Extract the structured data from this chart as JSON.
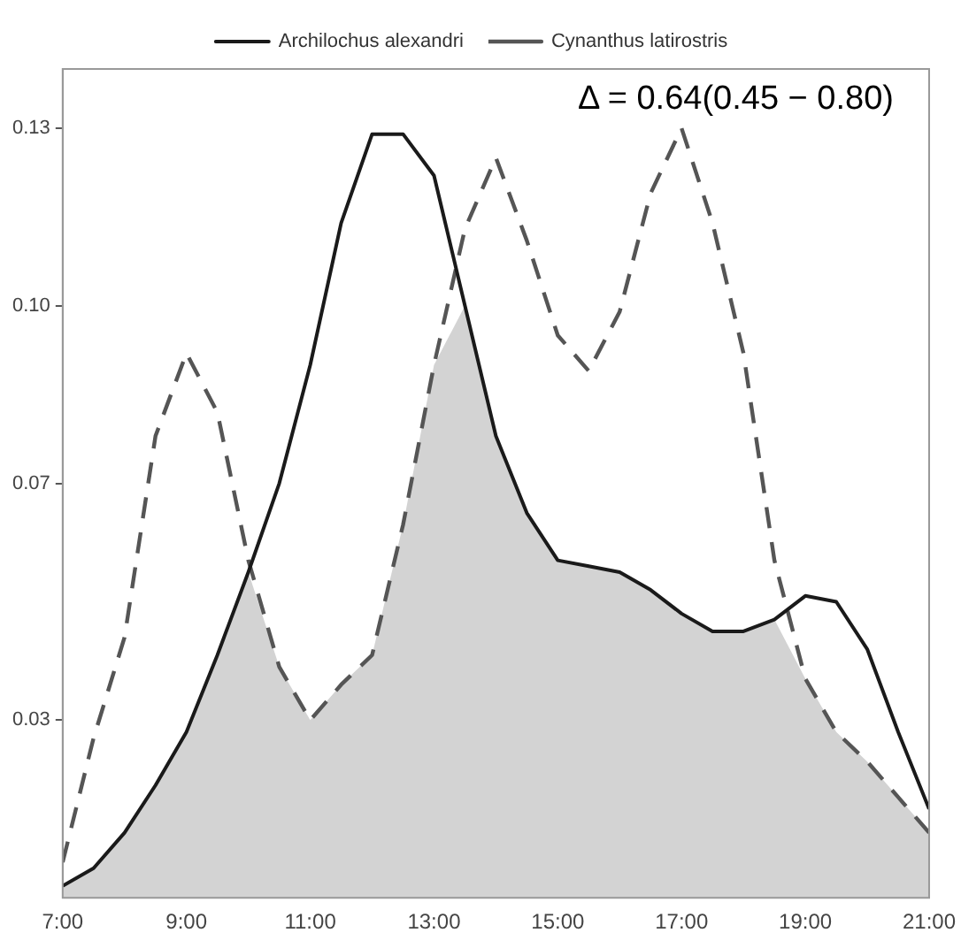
{
  "chart_data": {
    "type": "line",
    "legend": "top",
    "grid": false,
    "marker": "none",
    "annotations": [
      "Δ = 0.64(0.45 − 0.80)"
    ],
    "x": [
      7,
      7.5,
      8,
      8.5,
      9,
      9.5,
      10,
      10.5,
      11,
      11.5,
      12,
      12.5,
      13,
      13.5,
      14,
      14.5,
      15,
      15.5,
      16,
      16.5,
      17,
      17.5,
      18,
      18.5,
      19,
      19.5,
      20,
      20.5,
      21
    ],
    "xlim": [
      7,
      21
    ],
    "xticks": [
      {
        "value": 7,
        "label": "7:00"
      },
      {
        "value": 9,
        "label": "9:00"
      },
      {
        "value": 11,
        "label": "11:00"
      },
      {
        "value": 13,
        "label": "13:00"
      },
      {
        "value": 15,
        "label": "15:00"
      },
      {
        "value": 17,
        "label": "17:00"
      },
      {
        "value": 19,
        "label": "19:00"
      },
      {
        "value": 21,
        "label": "21:00"
      }
    ],
    "ylim": [
      0,
      0.14
    ],
    "yticks": [
      0.03,
      0.07,
      {
        "value": 0.1,
        "label": "0.10"
      },
      0.13
    ],
    "series": [
      {
        "type": "area",
        "color": "#d3d3d3",
        "values": [
          0.002,
          0.005,
          0.011,
          0.019,
          0.028,
          0.041,
          0.055,
          0.039,
          0.03,
          0.036,
          0.041,
          0.063,
          0.09,
          0.1,
          0.078,
          0.065,
          0.057,
          0.056,
          0.055,
          0.052,
          0.048,
          0.045,
          0.045,
          0.047,
          0.037,
          0.028,
          0.023,
          0.017,
          0.011
        ]
      },
      {
        "name": "Archilochus alexandri",
        "color": "#1a1a1a",
        "line_style": "solid",
        "values": [
          0.002,
          0.005,
          0.011,
          0.019,
          0.028,
          0.041,
          0.055,
          0.07,
          0.09,
          0.114,
          0.129,
          0.129,
          0.122,
          0.1,
          0.078,
          0.065,
          0.057,
          0.056,
          0.055,
          0.052,
          0.048,
          0.045,
          0.045,
          0.047,
          0.051,
          0.05,
          0.042,
          0.028,
          0.015
        ]
      },
      {
        "name": "Cynanthus latirostris",
        "color": "#555555",
        "line_style": "dashed",
        "values": [
          0.006,
          0.027,
          0.044,
          0.078,
          0.092,
          0.082,
          0.057,
          0.039,
          0.03,
          0.036,
          0.041,
          0.063,
          0.09,
          0.113,
          0.125,
          0.111,
          0.095,
          0.089,
          0.099,
          0.119,
          0.13,
          0.114,
          0.092,
          0.057,
          0.037,
          0.028,
          0.023,
          0.017,
          0.011
        ]
      }
    ]
  }
}
